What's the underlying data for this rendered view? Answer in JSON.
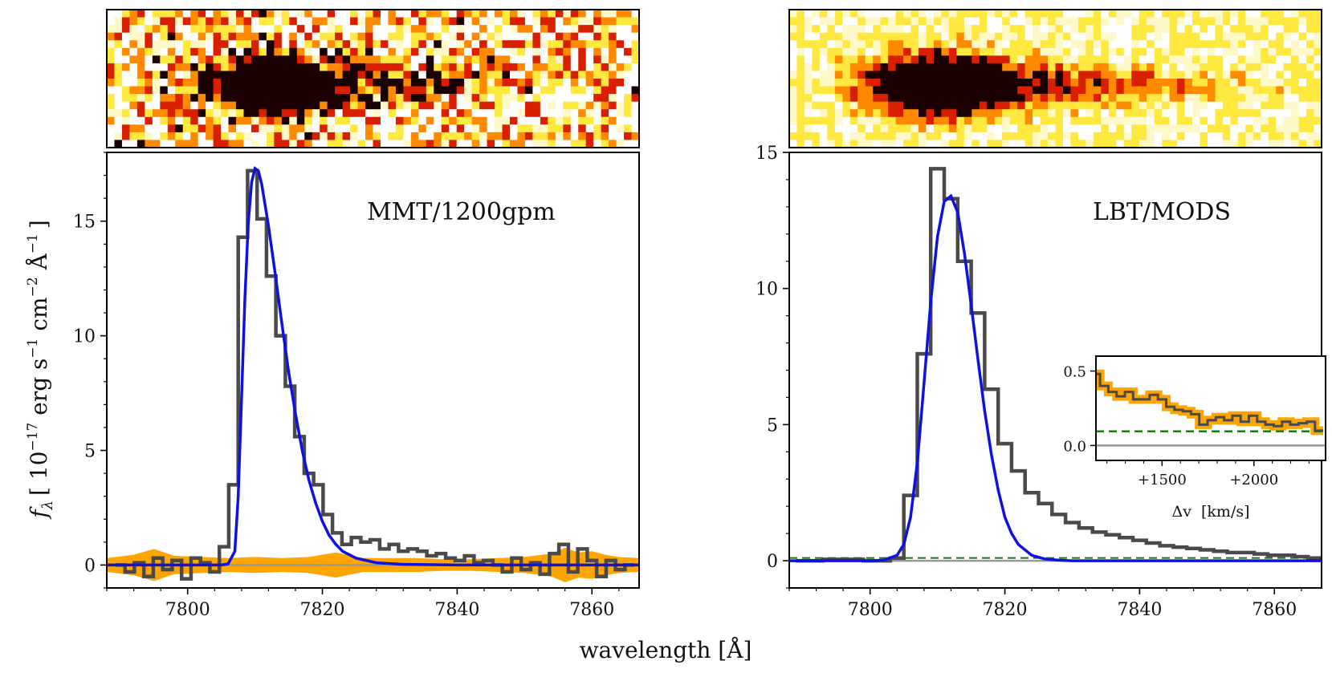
{
  "colors": {
    "data_step": "#4a4a4a",
    "model": "#1010e0",
    "error": "#ffa500",
    "zero": "#999999",
    "continuum": "#1a7a1a",
    "frame": "#000000",
    "image_dark": "#1a0000",
    "image_red": "#d82000",
    "image_orange": "#ff8a00",
    "image_yellow": "#ffe840",
    "image_pale": "#fff8c8"
  },
  "labels": {
    "ylabel": "f_λ [ 10^−17 erg s^−1 cm^−2 Å^−1 ]",
    "ylabel_main": "f",
    "ylabel_sub": "λ",
    "ylabel_a": "[ 10",
    "ylabel_exp1": "−17",
    "ylabel_b": " erg s",
    "ylabel_exp2": "−1",
    "ylabel_c": " cm",
    "ylabel_exp3": "−2",
    "ylabel_d": " Å",
    "ylabel_exp4": "−1",
    "ylabel_e": "]",
    "xlabel": "wavelength [Å]"
  },
  "chart_data": [
    {
      "name": "left-panel",
      "type": "line",
      "annotation": "MMT/1200gpm",
      "xlim": [
        7788,
        7867
      ],
      "ylim": [
        -1,
        18
      ],
      "xticks": [
        7800,
        7820,
        7840,
        7860
      ],
      "yticks": [
        0,
        5,
        10,
        15
      ],
      "series": [
        {
          "name": "observed spectrum",
          "style": "step",
          "x": [
            7790,
            7791.4,
            7792.8,
            7794.2,
            7795.6,
            7797,
            7798.4,
            7799.8,
            7801.2,
            7802.6,
            7804,
            7805.4,
            7806.8,
            7808.2,
            7809.6,
            7811,
            7812.4,
            7813.8,
            7815.2,
            7816.6,
            7818,
            7819.4,
            7820.8,
            7822.2,
            7823.6,
            7825,
            7826.4,
            7827.8,
            7829.2,
            7830.6,
            7832,
            7833.4,
            7834.8,
            7836.2,
            7837.6,
            7839,
            7840.4,
            7841.8,
            7843.2,
            7844.6,
            7846,
            7847.4,
            7848.8,
            7850.2,
            7851.6,
            7853,
            7854.4,
            7855.8,
            7857.2,
            7858.6,
            7860,
            7861.4,
            7862.8,
            7864.2,
            7865.6
          ],
          "y": [
            0.0,
            -0.3,
            0.1,
            -0.5,
            0.3,
            -0.2,
            0.2,
            -0.6,
            0.3,
            0.1,
            -0.3,
            0.8,
            3.5,
            14.3,
            17.2,
            15.1,
            12.6,
            10.0,
            7.8,
            5.6,
            4.0,
            3.5,
            2.2,
            1.4,
            0.9,
            1.2,
            1.0,
            1.1,
            0.7,
            0.9,
            0.6,
            0.7,
            0.6,
            0.4,
            0.5,
            0.3,
            0.2,
            0.4,
            0.1,
            0.2,
            0.0,
            -0.3,
            0.3,
            -0.2,
            0.1,
            -0.4,
            0.5,
            0.9,
            -0.3,
            0.7,
            0.2,
            -0.5,
            0.2,
            -0.2,
            0.0
          ]
        },
        {
          "name": "model fit",
          "style": "line",
          "x": [
            7788,
            7800,
            7805,
            7806,
            7807,
            7807.5,
            7808,
            7808.5,
            7809,
            7809.5,
            7810,
            7810.5,
            7811,
            7812,
            7813,
            7814,
            7815,
            7816,
            7817,
            7818,
            7819,
            7820,
            7821,
            7822,
            7823,
            7825,
            7828,
            7832,
            7840,
            7867
          ],
          "y": [
            0,
            0,
            0,
            0.05,
            0.6,
            3.0,
            7.2,
            11.6,
            14.9,
            16.7,
            17.3,
            17.2,
            16.6,
            14.8,
            12.7,
            10.5,
            8.4,
            6.6,
            5.0,
            3.7,
            2.7,
            1.9,
            1.3,
            0.9,
            0.6,
            0.3,
            0.1,
            0.03,
            0,
            0
          ]
        },
        {
          "name": "1-sigma error band",
          "style": "band",
          "x": [
            7788,
            7792,
            7795,
            7798,
            7802,
            7806,
            7810,
            7814,
            7818,
            7822,
            7826,
            7830,
            7834,
            7838,
            7842,
            7846,
            7850,
            7854,
            7856,
            7858,
            7860,
            7862,
            7864,
            7867
          ],
          "y": [
            0.3,
            0.45,
            0.7,
            0.4,
            0.35,
            0.3,
            0.35,
            0.3,
            0.35,
            0.55,
            0.3,
            0.3,
            0.3,
            0.25,
            0.25,
            0.3,
            0.35,
            0.5,
            0.75,
            0.55,
            0.6,
            0.45,
            0.35,
            0.3
          ]
        },
        {
          "name": "zero level",
          "style": "hline",
          "y": [
            0
          ]
        }
      ]
    },
    {
      "name": "right-panel",
      "type": "line",
      "annotation": "LBT/MODS",
      "xlim": [
        7788,
        7867
      ],
      "ylim": [
        -1,
        15
      ],
      "xticks": [
        7800,
        7820,
        7840,
        7860
      ],
      "yticks": [
        0,
        5,
        10,
        15
      ],
      "series": [
        {
          "name": "observed spectrum",
          "style": "step",
          "x": [
            7790,
            7792,
            7794,
            7796,
            7798,
            7800,
            7802,
            7804,
            7806,
            7808,
            7810,
            7812,
            7814,
            7816,
            7818,
            7820,
            7822,
            7824,
            7826,
            7828,
            7830,
            7832,
            7834,
            7836,
            7838,
            7840,
            7842,
            7844,
            7846,
            7848,
            7850,
            7852,
            7854,
            7856,
            7858,
            7860,
            7862,
            7864,
            7866
          ],
          "y": [
            0.0,
            0.0,
            0.05,
            0.05,
            0.05,
            0.0,
            0.0,
            0.1,
            2.4,
            7.6,
            14.4,
            13.3,
            11.0,
            9.1,
            6.3,
            4.3,
            3.3,
            2.5,
            2.1,
            1.7,
            1.4,
            1.2,
            1.05,
            0.95,
            0.85,
            0.75,
            0.65,
            0.55,
            0.5,
            0.45,
            0.4,
            0.35,
            0.3,
            0.3,
            0.25,
            0.2,
            0.2,
            0.15,
            0.1
          ]
        },
        {
          "name": "model fit",
          "style": "line",
          "x": [
            7788,
            7800,
            7802,
            7804,
            7805,
            7806,
            7807,
            7808,
            7809,
            7810,
            7811,
            7812,
            7813,
            7814,
            7815,
            7816,
            7817,
            7818,
            7819,
            7820,
            7821,
            7822,
            7824,
            7826,
            7828,
            7830,
            7867
          ],
          "y": [
            0,
            0,
            0.02,
            0.2,
            0.6,
            1.6,
            3.6,
            6.5,
            9.5,
            11.9,
            13.2,
            13.4,
            12.8,
            11.3,
            9.4,
            7.4,
            5.5,
            3.9,
            2.6,
            1.6,
            1.0,
            0.6,
            0.2,
            0.06,
            0.02,
            0,
            0
          ]
        },
        {
          "name": "continuum level",
          "style": "dashed-hline",
          "y": [
            0.1
          ]
        },
        {
          "name": "zero level",
          "style": "hline",
          "y": [
            0
          ]
        }
      ]
    },
    {
      "name": "inset",
      "type": "line",
      "xlabel": "Δv  [km/s]",
      "xlim": [
        1140,
        2390
      ],
      "ylim": [
        -0.1,
        0.6
      ],
      "xticks": [
        1500,
        2000
      ],
      "xtick_labels": [
        "+1500",
        "+2000"
      ],
      "yticks": [
        0.0,
        0.5
      ],
      "ytick_labels": [
        "0.0",
        "0.5"
      ],
      "series": [
        {
          "name": "observed spectrum",
          "style": "step",
          "x": [
            1140,
            1185,
            1230,
            1275,
            1320,
            1365,
            1410,
            1455,
            1500,
            1545,
            1590,
            1635,
            1680,
            1725,
            1770,
            1815,
            1860,
            1905,
            1950,
            1995,
            2040,
            2085,
            2130,
            2175,
            2220,
            2265,
            2310,
            2355
          ],
          "y": [
            0.48,
            0.4,
            0.36,
            0.33,
            0.36,
            0.31,
            0.31,
            0.34,
            0.31,
            0.26,
            0.24,
            0.23,
            0.21,
            0.14,
            0.17,
            0.19,
            0.17,
            0.2,
            0.16,
            0.2,
            0.16,
            0.14,
            0.13,
            0.16,
            0.14,
            0.15,
            0.16,
            0.1
          ]
        },
        {
          "name": "continuum level",
          "style": "dashed-hline",
          "y": [
            0.095
          ]
        },
        {
          "name": "zero level",
          "style": "hline",
          "y": [
            0
          ]
        }
      ]
    }
  ]
}
